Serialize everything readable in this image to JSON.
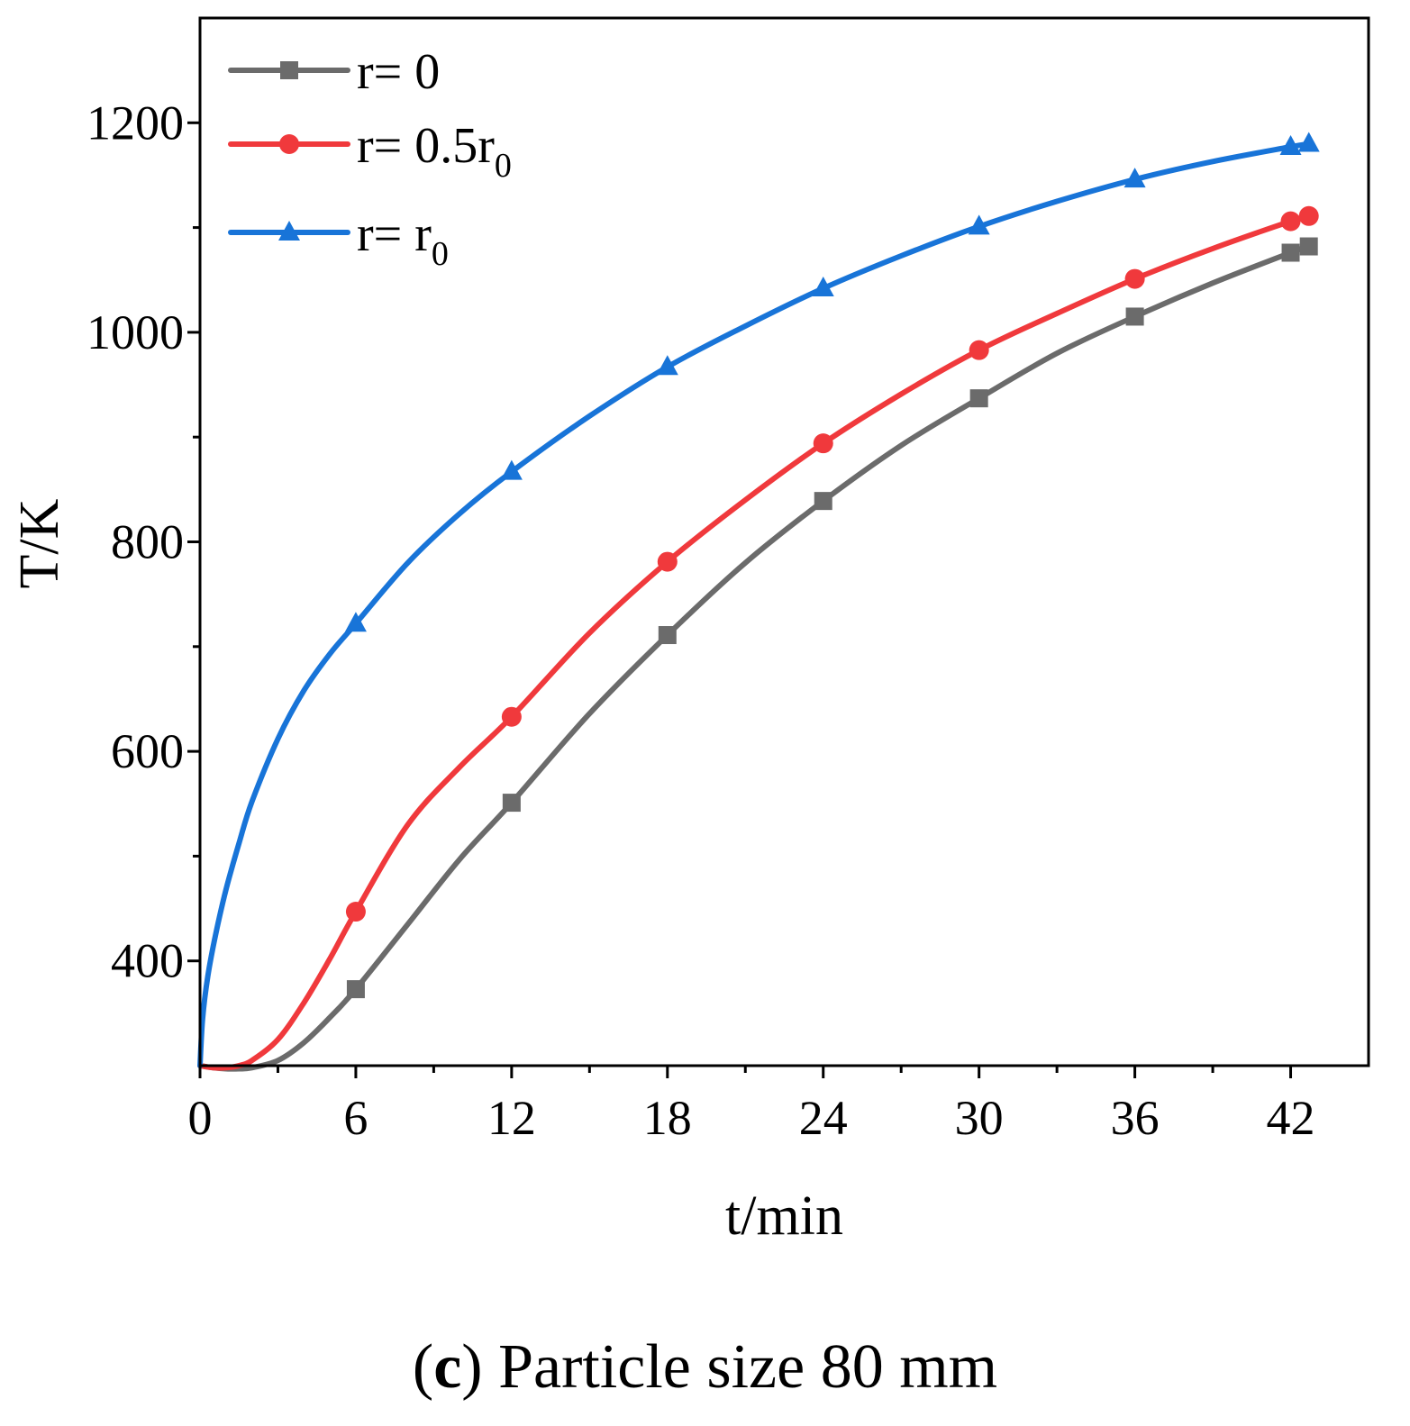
{
  "chart_data": {
    "type": "line",
    "xlabel": "t/min",
    "ylabel": "T/K",
    "xlim": [
      0,
      45
    ],
    "ylim": [
      300,
      1300
    ],
    "x_ticks": [
      0,
      6,
      12,
      18,
      24,
      30,
      36,
      42
    ],
    "x_minor_ticks": [
      3,
      9,
      15,
      21,
      27,
      33,
      39
    ],
    "y_ticks": [
      400,
      600,
      800,
      1000,
      1200
    ],
    "y_minor_ticks": [
      500,
      700,
      900,
      1100
    ],
    "grid": false,
    "legend_position": "top-left",
    "series": [
      {
        "name": "r= 0",
        "name_parts": {
          "base": "r= 0",
          "sub": ""
        },
        "color": "#6b6b6b",
        "marker": "square",
        "curve": [
          [
            0,
            300
          ],
          [
            0.5,
            298
          ],
          [
            1,
            297
          ],
          [
            1.5,
            297
          ],
          [
            2,
            298
          ],
          [
            3,
            305
          ],
          [
            4,
            322
          ],
          [
            5,
            346
          ],
          [
            6,
            373
          ],
          [
            8,
            435
          ],
          [
            10,
            497
          ],
          [
            12,
            551
          ],
          [
            15,
            636
          ],
          [
            18,
            711
          ],
          [
            21,
            780
          ],
          [
            24,
            839
          ],
          [
            27,
            892
          ],
          [
            30,
            937
          ],
          [
            33,
            980
          ],
          [
            36,
            1015
          ],
          [
            39,
            1047
          ],
          [
            42,
            1076
          ],
          [
            42.7,
            1082
          ]
        ],
        "markers": [
          [
            6,
            373
          ],
          [
            12,
            551
          ],
          [
            18,
            711
          ],
          [
            24,
            839
          ],
          [
            30,
            937
          ],
          [
            36,
            1015
          ],
          [
            42,
            1076
          ],
          [
            42.7,
            1082
          ]
        ]
      },
      {
        "name": "r= 0.5r0",
        "name_parts": {
          "base": "r= 0.5r",
          "sub": "0"
        },
        "color": "#f0393c",
        "marker": "circle",
        "curve": [
          [
            0,
            300
          ],
          [
            0.5,
            298
          ],
          [
            1,
            298
          ],
          [
            1.5,
            300
          ],
          [
            2,
            305
          ],
          [
            3,
            325
          ],
          [
            4,
            360
          ],
          [
            5,
            402
          ],
          [
            6,
            447
          ],
          [
            8,
            530
          ],
          [
            10,
            585
          ],
          [
            12,
            633
          ],
          [
            15,
            713
          ],
          [
            18,
            781
          ],
          [
            21,
            840
          ],
          [
            24,
            894
          ],
          [
            27,
            941
          ],
          [
            30,
            983
          ],
          [
            33,
            1018
          ],
          [
            36,
            1051
          ],
          [
            39,
            1080
          ],
          [
            42,
            1106
          ],
          [
            42.7,
            1111
          ]
        ],
        "markers": [
          [
            6,
            447
          ],
          [
            12,
            633
          ],
          [
            18,
            781
          ],
          [
            24,
            894
          ],
          [
            30,
            983
          ],
          [
            36,
            1051
          ],
          [
            42,
            1106
          ],
          [
            42.7,
            1111
          ]
        ]
      },
      {
        "name": "r= r0",
        "name_parts": {
          "base": "r= r",
          "sub": "0"
        },
        "color": "#1874d8",
        "marker": "triangle",
        "curve": [
          [
            0,
            300
          ],
          [
            0.1,
            345
          ],
          [
            0.3,
            385
          ],
          [
            0.6,
            425
          ],
          [
            1,
            468
          ],
          [
            1.5,
            512
          ],
          [
            2,
            552
          ],
          [
            3,
            612
          ],
          [
            4,
            658
          ],
          [
            5,
            693
          ],
          [
            6,
            722
          ],
          [
            8,
            780
          ],
          [
            10,
            827
          ],
          [
            12,
            867
          ],
          [
            15,
            920
          ],
          [
            18,
            967
          ],
          [
            21,
            1006
          ],
          [
            24,
            1042
          ],
          [
            27,
            1073
          ],
          [
            30,
            1101
          ],
          [
            33,
            1125
          ],
          [
            36,
            1146
          ],
          [
            39,
            1163
          ],
          [
            42,
            1177
          ],
          [
            42.7,
            1180
          ]
        ],
        "markers": [
          [
            6,
            722
          ],
          [
            12,
            867
          ],
          [
            18,
            967
          ],
          [
            24,
            1042
          ],
          [
            30,
            1101
          ],
          [
            36,
            1146
          ],
          [
            42,
            1177
          ],
          [
            42.7,
            1180
          ]
        ]
      }
    ]
  },
  "caption": {
    "open_paren": "(",
    "letter": "c",
    "close_paren": ")",
    "text": " Particle size 80 mm"
  }
}
